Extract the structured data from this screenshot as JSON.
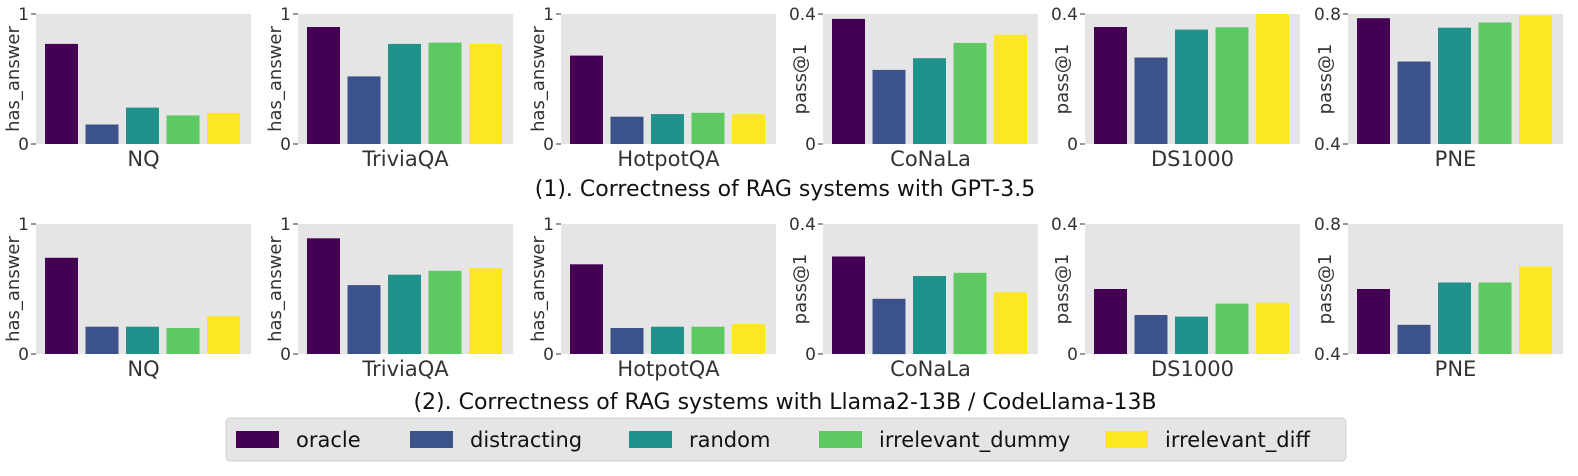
{
  "series_names": [
    "oracle",
    "distracting",
    "random",
    "irrelevant_dummy",
    "irrelevant_diff"
  ],
  "colors": {
    "oracle": "#440154",
    "distracting": "#3b528b",
    "random": "#21918c",
    "irrelevant_dummy": "#5ec962",
    "irrelevant_diff": "#fde725",
    "panel_bg": "#e5e5e5",
    "legend_bg": "#e5e5e5"
  },
  "rows": [
    {
      "title": "(1). Correctness of RAG systems with GPT-3.5"
    },
    {
      "title": "(2). Correctness of RAG systems with Llama2-13B / CodeLlama-13B"
    }
  ],
  "chart_data": [
    {
      "type": "bar",
      "row": 0,
      "title": "NQ",
      "ylabel": "has_answer",
      "ylim": [
        0,
        1
      ],
      "yticks": [
        "0",
        "1"
      ],
      "categories": [
        "NQ"
      ],
      "series": [
        {
          "name": "oracle",
          "values": [
            0.77
          ]
        },
        {
          "name": "distracting",
          "values": [
            0.15
          ]
        },
        {
          "name": "random",
          "values": [
            0.28
          ]
        },
        {
          "name": "irrelevant_dummy",
          "values": [
            0.22
          ]
        },
        {
          "name": "irrelevant_diff",
          "values": [
            0.24
          ]
        }
      ]
    },
    {
      "type": "bar",
      "row": 0,
      "title": "TriviaQA",
      "ylabel": "has_answer",
      "ylim": [
        0,
        1
      ],
      "yticks": [
        "0",
        "1"
      ],
      "categories": [
        "TriviaQA"
      ],
      "series": [
        {
          "name": "oracle",
          "values": [
            0.9
          ]
        },
        {
          "name": "distracting",
          "values": [
            0.52
          ]
        },
        {
          "name": "random",
          "values": [
            0.77
          ]
        },
        {
          "name": "irrelevant_dummy",
          "values": [
            0.78
          ]
        },
        {
          "name": "irrelevant_diff",
          "values": [
            0.77
          ]
        }
      ]
    },
    {
      "type": "bar",
      "row": 0,
      "title": "HotpotQA",
      "ylabel": "has_answer",
      "ylim": [
        0,
        1
      ],
      "yticks": [
        "0",
        "1"
      ],
      "categories": [
        "HotpotQA"
      ],
      "series": [
        {
          "name": "oracle",
          "values": [
            0.68
          ]
        },
        {
          "name": "distracting",
          "values": [
            0.21
          ]
        },
        {
          "name": "random",
          "values": [
            0.23
          ]
        },
        {
          "name": "irrelevant_dummy",
          "values": [
            0.24
          ]
        },
        {
          "name": "irrelevant_diff",
          "values": [
            0.23
          ]
        }
      ]
    },
    {
      "type": "bar",
      "row": 0,
      "title": "CoNaLa",
      "ylabel": "pass@1",
      "ylim": [
        0,
        0.4
      ],
      "yticks": [
        "0",
        "0.4"
      ],
      "categories": [
        "CoNaLa"
      ],
      "series": [
        {
          "name": "oracle",
          "values": [
            0.385
          ]
        },
        {
          "name": "distracting",
          "values": [
            0.228
          ]
        },
        {
          "name": "random",
          "values": [
            0.264
          ]
        },
        {
          "name": "irrelevant_dummy",
          "values": [
            0.311
          ]
        },
        {
          "name": "irrelevant_diff",
          "values": [
            0.336
          ]
        }
      ]
    },
    {
      "type": "bar",
      "row": 0,
      "title": "DS1000",
      "ylabel": "pass@1",
      "ylim": [
        0,
        0.4
      ],
      "yticks": [
        "0",
        "0.4"
      ],
      "categories": [
        "DS1000"
      ],
      "series": [
        {
          "name": "oracle",
          "values": [
            0.36
          ]
        },
        {
          "name": "distracting",
          "values": [
            0.266
          ]
        },
        {
          "name": "random",
          "values": [
            0.352
          ]
        },
        {
          "name": "irrelevant_dummy",
          "values": [
            0.359
          ]
        },
        {
          "name": "irrelevant_diff",
          "values": [
            0.4
          ]
        }
      ]
    },
    {
      "type": "bar",
      "row": 0,
      "title": "PNE",
      "ylabel": "pass@1",
      "ylim": [
        0.4,
        0.8
      ],
      "yticks": [
        "0.4",
        "0.8"
      ],
      "categories": [
        "PNE"
      ],
      "series": [
        {
          "name": "oracle",
          "values": [
            0.787
          ]
        },
        {
          "name": "distracting",
          "values": [
            0.654
          ]
        },
        {
          "name": "random",
          "values": [
            0.758
          ]
        },
        {
          "name": "irrelevant_dummy",
          "values": [
            0.774
          ]
        },
        {
          "name": "irrelevant_diff",
          "values": [
            0.795
          ]
        }
      ]
    },
    {
      "type": "bar",
      "row": 1,
      "title": "NQ",
      "ylabel": "has_answer",
      "ylim": [
        0,
        1
      ],
      "yticks": [
        "0",
        "1"
      ],
      "categories": [
        "NQ"
      ],
      "series": [
        {
          "name": "oracle",
          "values": [
            0.74
          ]
        },
        {
          "name": "distracting",
          "values": [
            0.21
          ]
        },
        {
          "name": "random",
          "values": [
            0.21
          ]
        },
        {
          "name": "irrelevant_dummy",
          "values": [
            0.2
          ]
        },
        {
          "name": "irrelevant_diff",
          "values": [
            0.29
          ]
        }
      ]
    },
    {
      "type": "bar",
      "row": 1,
      "title": "TriviaQA",
      "ylabel": "has_answer",
      "ylim": [
        0,
        1
      ],
      "yticks": [
        "0",
        "1"
      ],
      "categories": [
        "TriviaQA"
      ],
      "series": [
        {
          "name": "oracle",
          "values": [
            0.89
          ]
        },
        {
          "name": "distracting",
          "values": [
            0.53
          ]
        },
        {
          "name": "random",
          "values": [
            0.61
          ]
        },
        {
          "name": "irrelevant_dummy",
          "values": [
            0.64
          ]
        },
        {
          "name": "irrelevant_diff",
          "values": [
            0.66
          ]
        }
      ]
    },
    {
      "type": "bar",
      "row": 1,
      "title": "HotpotQA",
      "ylabel": "has_answer",
      "ylim": [
        0,
        1
      ],
      "yticks": [
        "0",
        "1"
      ],
      "categories": [
        "HotpotQA"
      ],
      "series": [
        {
          "name": "oracle",
          "values": [
            0.69
          ]
        },
        {
          "name": "distracting",
          "values": [
            0.2
          ]
        },
        {
          "name": "random",
          "values": [
            0.21
          ]
        },
        {
          "name": "irrelevant_dummy",
          "values": [
            0.21
          ]
        },
        {
          "name": "irrelevant_diff",
          "values": [
            0.23
          ]
        }
      ]
    },
    {
      "type": "bar",
      "row": 1,
      "title": "CoNaLa",
      "ylabel": "pass@1",
      "ylim": [
        0,
        0.4
      ],
      "yticks": [
        "0",
        "0.4"
      ],
      "categories": [
        "CoNaLa"
      ],
      "series": [
        {
          "name": "oracle",
          "values": [
            0.3
          ]
        },
        {
          "name": "distracting",
          "values": [
            0.17
          ]
        },
        {
          "name": "random",
          "values": [
            0.24
          ]
        },
        {
          "name": "irrelevant_dummy",
          "values": [
            0.25
          ]
        },
        {
          "name": "irrelevant_diff",
          "values": [
            0.19
          ]
        }
      ]
    },
    {
      "type": "bar",
      "row": 1,
      "title": "DS1000",
      "ylabel": "pass@1",
      "ylim": [
        0,
        0.4
      ],
      "yticks": [
        "0",
        "0.4"
      ],
      "categories": [
        "DS1000"
      ],
      "series": [
        {
          "name": "oracle",
          "values": [
            0.2
          ]
        },
        {
          "name": "distracting",
          "values": [
            0.12
          ]
        },
        {
          "name": "random",
          "values": [
            0.115
          ]
        },
        {
          "name": "irrelevant_dummy",
          "values": [
            0.155
          ]
        },
        {
          "name": "irrelevant_diff",
          "values": [
            0.158
          ]
        }
      ]
    },
    {
      "type": "bar",
      "row": 1,
      "title": "PNE",
      "ylabel": "pass@1",
      "ylim": [
        0.4,
        0.8
      ],
      "yticks": [
        "0.4",
        "0.8"
      ],
      "categories": [
        "PNE"
      ],
      "series": [
        {
          "name": "oracle",
          "values": [
            0.6
          ]
        },
        {
          "name": "distracting",
          "values": [
            0.49
          ]
        },
        {
          "name": "random",
          "values": [
            0.62
          ]
        },
        {
          "name": "irrelevant_dummy",
          "values": [
            0.62
          ]
        },
        {
          "name": "irrelevant_diff",
          "values": [
            0.67
          ]
        }
      ]
    }
  ]
}
